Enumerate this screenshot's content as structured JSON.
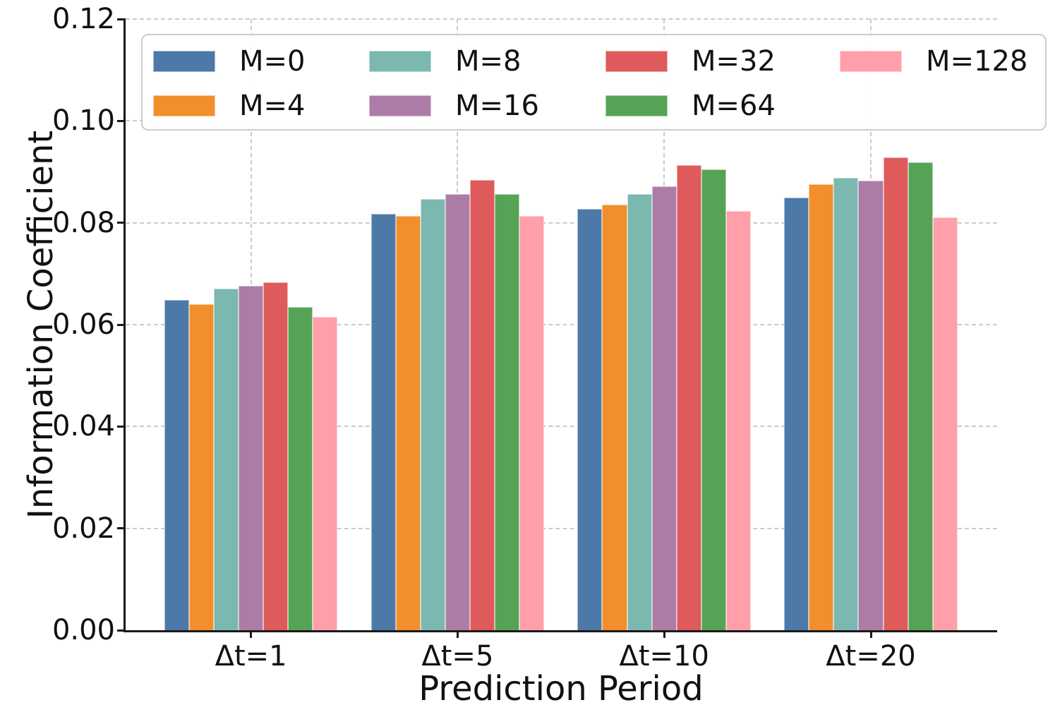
{
  "chart_data": {
    "type": "bar",
    "title": "",
    "xlabel": "Prediction Period",
    "ylabel": "Information Coefficient",
    "categories": [
      "Δt=1",
      "Δt=5",
      "Δt=10",
      "Δt=20"
    ],
    "series": [
      {
        "name": "M=0",
        "color": "#4C79A8",
        "values": [
          0.0648,
          0.0817,
          0.0827,
          0.0849
        ]
      },
      {
        "name": "M=4",
        "color": "#F28E2B",
        "values": [
          0.064,
          0.0814,
          0.0836,
          0.0876
        ]
      },
      {
        "name": "M=8",
        "color": "#7AB8B0",
        "values": [
          0.067,
          0.0846,
          0.0857,
          0.0888
        ]
      },
      {
        "name": "M=16",
        "color": "#AC7CA7",
        "values": [
          0.0676,
          0.0857,
          0.0871,
          0.0882
        ]
      },
      {
        "name": "M=32",
        "color": "#DF5A5A",
        "values": [
          0.0683,
          0.0884,
          0.0913,
          0.0928
        ]
      },
      {
        "name": "M=64",
        "color": "#57A355",
        "values": [
          0.0635,
          0.0856,
          0.0905,
          0.0919
        ]
      },
      {
        "name": "M=128",
        "color": "#FF9FA9",
        "values": [
          0.0615,
          0.0813,
          0.0823,
          0.081
        ]
      }
    ],
    "ylim": [
      0,
      0.12
    ],
    "ytick_labels": [
      "0.00",
      "0.02",
      "0.04",
      "0.06",
      "0.08",
      "0.10",
      "0.12"
    ],
    "yticks": [
      0,
      0.02,
      0.04,
      0.06,
      0.08,
      0.1,
      0.12
    ],
    "grid": "dashed-both-axes",
    "legend_position": "upper-left-inside",
    "legend_columns": 4,
    "legend_order": "column-major"
  }
}
